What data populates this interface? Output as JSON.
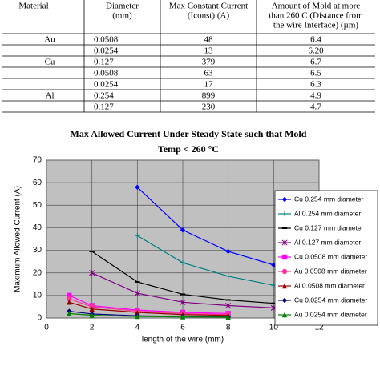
{
  "table": {
    "header": [
      [
        "Material"
      ],
      [
        "Diameter",
        "(mm)"
      ],
      [
        "Max Constant Current",
        "(Iconst) (A)"
      ],
      [
        "Amount of Mold at more",
        "than 260 C (Distance from",
        "the wire Interface) (µm)"
      ]
    ],
    "rows": [
      [
        "Au",
        "0.0508",
        "48",
        "6.4"
      ],
      [
        null,
        "0.0254",
        "13",
        "6.20"
      ],
      [
        "Cu",
        "0.127",
        "379",
        "6.7"
      ],
      [
        null,
        "0.0508",
        "63",
        "6.5"
      ],
      [
        null,
        "0.0254",
        "17",
        "6.3"
      ],
      [
        "Al",
        "0.254",
        "899",
        "4.9"
      ],
      [
        null,
        "0.127",
        "230",
        "4.7"
      ]
    ]
  },
  "chart_data": {
    "type": "line",
    "title": [
      "Max Allowed Current Under Steady State such that Mold",
      "Temp < 260 °C"
    ],
    "x_label": "length of the wire (mm)",
    "y_label": "Maximum Allowed Current (A)",
    "x": [
      1,
      2,
      4,
      6,
      8,
      10
    ],
    "xlim": [
      0,
      12
    ],
    "xticks": [
      0,
      2,
      4,
      6,
      8,
      10,
      12
    ],
    "ylim": [
      0,
      70
    ],
    "yticks": [
      0,
      10,
      20,
      30,
      40,
      50,
      60,
      70
    ],
    "grid": true,
    "legend": "right",
    "series": [
      {
        "name": "Cu 0.254 mm diameter",
        "color": "#0000ff",
        "marker": "diamond",
        "values": [
          null,
          null,
          58,
          39,
          29.5,
          23.5
        ]
      },
      {
        "name": "Al 0.254 mm diameter",
        "color": "#008080",
        "marker": "plus",
        "values": [
          null,
          null,
          36.5,
          24.5,
          18.5,
          14.5
        ]
      },
      {
        "name": "Cu 0.127 mm diameter",
        "color": "#000000",
        "marker": "dash",
        "values": [
          null,
          29.5,
          16,
          10.5,
          8,
          6.5
        ]
      },
      {
        "name": "Al 0.127 mm diameter",
        "color": "#800080",
        "marker": "star",
        "values": [
          null,
          20,
          11,
          7,
          5.5,
          4.5
        ]
      },
      {
        "name": "Cu 0.0508 mm diameter",
        "color": "#ff00ff",
        "marker": "square",
        "values": [
          10,
          5.5,
          3.5,
          2.5,
          2,
          null
        ]
      },
      {
        "name": "Au 0.0508 mm diameter",
        "color": "#ff3399",
        "marker": "circle",
        "values": [
          8.5,
          5,
          3,
          2,
          1.5,
          null
        ]
      },
      {
        "name": "Al 0.0508 mm diameter",
        "color": "#990000",
        "marker": "triangle",
        "values": [
          7,
          4,
          2.5,
          1.5,
          1.2,
          null
        ]
      },
      {
        "name": "Cu 0.0254 mm diameter",
        "color": "#000080",
        "marker": "diamond",
        "values": [
          3,
          1.8,
          1,
          0.7,
          0.5,
          null
        ]
      },
      {
        "name": "Au 0.0254 mm diameter",
        "color": "#008000",
        "marker": "triangle",
        "values": [
          2,
          1.2,
          0.7,
          0.5,
          0.4,
          null
        ]
      }
    ]
  }
}
